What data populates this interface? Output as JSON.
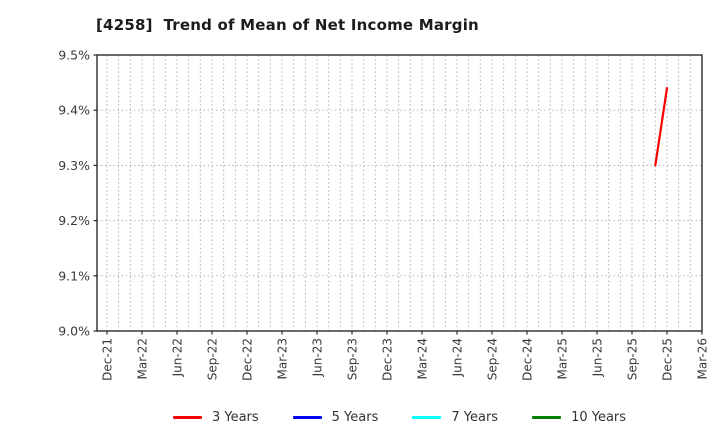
{
  "header": {
    "title": "[4258]  Trend of Mean of Net Income Margin"
  },
  "chart_data": {
    "type": "line",
    "title": "[4258]  Trend of Mean of Net Income Margin",
    "xlabel": "",
    "ylabel": "",
    "ylim": [
      9.0,
      9.5
    ],
    "ytick_values": [
      9.0,
      9.1,
      9.2,
      9.3,
      9.4,
      9.5
    ],
    "ytick_labels": [
      "9.0%",
      "9.1%",
      "9.2%",
      "9.3%",
      "9.4%",
      "9.5%"
    ],
    "xtick_labels": [
      "Dec-21",
      "Mar-22",
      "Jun-22",
      "Sep-22",
      "Dec-22",
      "Mar-23",
      "Jun-23",
      "Sep-23",
      "Dec-23",
      "Mar-24",
      "Jun-24",
      "Sep-24",
      "Dec-24",
      "Mar-25",
      "Jun-25",
      "Sep-25",
      "Dec-25",
      "Mar-26"
    ],
    "grid": "on",
    "grid_style": "dotted, monthly vertical lines and 0.1% horizontal lines",
    "legend_position": "bottom-center",
    "series": [
      {
        "name": "3 Years",
        "color": "#ff0000",
        "points": [
          {
            "x": "Nov-25",
            "y": 9.3
          },
          {
            "x": "Dec-25",
            "y": 9.44
          }
        ]
      },
      {
        "name": "5 Years",
        "color": "#0000ff",
        "points": []
      },
      {
        "name": "7 Years",
        "color": "#00ffff",
        "points": []
      },
      {
        "name": "10 Years",
        "color": "#008000",
        "points": []
      }
    ],
    "colors": {
      "grid": "#b0b0b0",
      "spine": "#2a2a2a",
      "tick_text": "#3a3a3a",
      "title_text": "#1c1c1c",
      "background": "#ffffff"
    }
  }
}
